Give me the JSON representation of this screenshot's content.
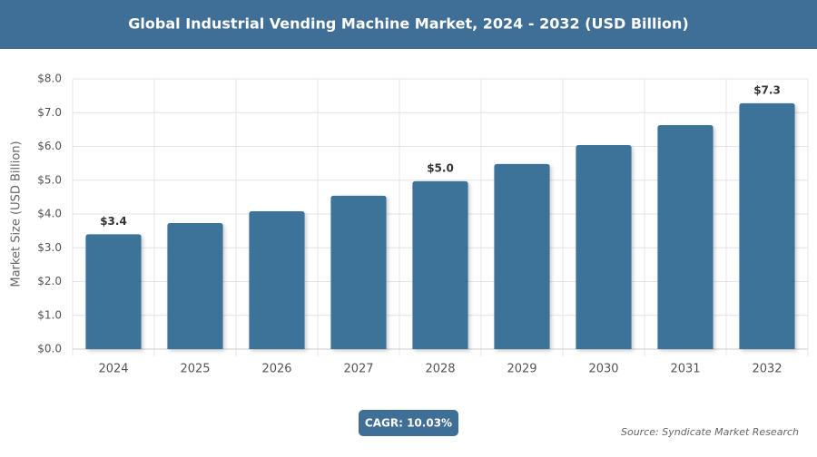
{
  "chart_data": {
    "type": "bar",
    "title": "Global Industrial Vending Machine Market, 2024 - 2032 (USD Billion)",
    "y_label": "Market Size (USD Billion)",
    "categories": [
      "2024",
      "2025",
      "2026",
      "2027",
      "2028",
      "2029",
      "2030",
      "2031",
      "2032"
    ],
    "values": [
      3.4,
      3.73,
      4.08,
      4.54,
      4.97,
      5.48,
      6.04,
      6.63,
      7.28
    ],
    "value_labels": [
      "$3.4",
      null,
      null,
      null,
      "$5.0",
      null,
      null,
      null,
      "$7.3"
    ],
    "color": "#3e7399",
    "ylim": [
      0,
      8
    ],
    "yticks": [
      {
        "value": 0,
        "label": "$0.0"
      },
      {
        "value": 1,
        "label": "$1.0"
      },
      {
        "value": 2,
        "label": "$2.0"
      },
      {
        "value": 3,
        "label": "$3.0"
      },
      {
        "value": 4,
        "label": "$4.0"
      },
      {
        "value": 5,
        "label": "$5.0"
      },
      {
        "value": 6,
        "label": "$6.0"
      },
      {
        "value": 7,
        "label": "$7.0"
      },
      {
        "value": 8,
        "label": "$8.0"
      }
    ],
    "grid": true,
    "cagr": "CAGR: 10.03%",
    "source": "Source: Syndicate Market Research"
  }
}
